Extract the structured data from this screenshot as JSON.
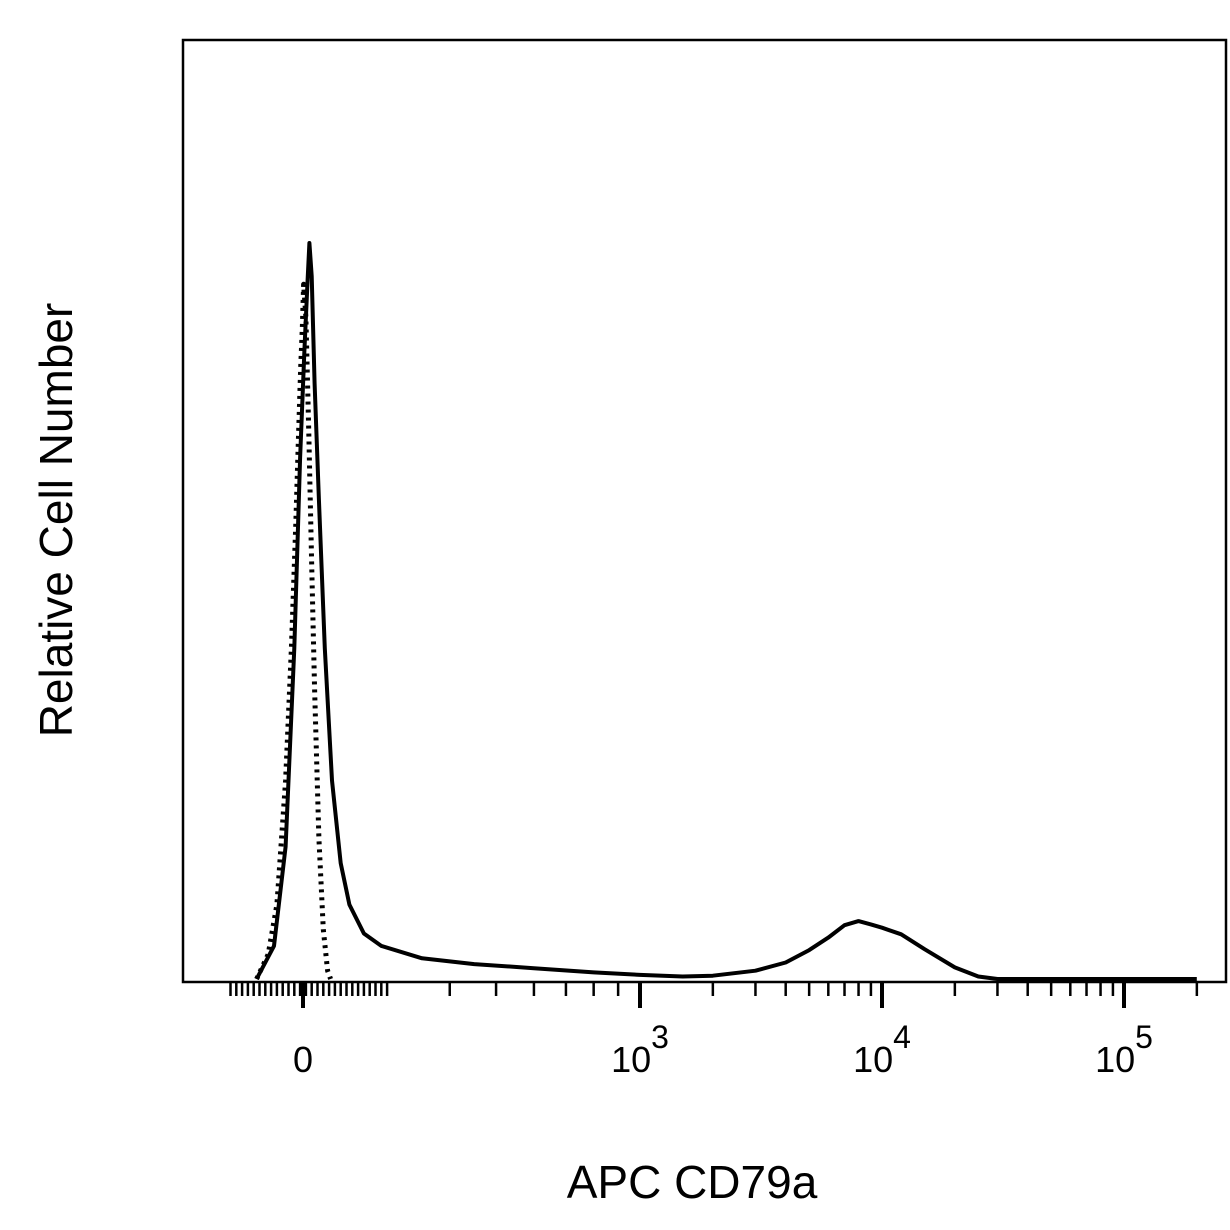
{
  "chart_data": {
    "type": "line",
    "title": "",
    "xlabel": "APC CD79a",
    "ylabel": "Relative Cell Number",
    "x_scale": "biexponential",
    "xlim": [
      -300,
      200000
    ],
    "ylim": [
      0,
      100
    ],
    "grid": false,
    "legend": "none",
    "x_ticks": [
      {
        "value": 0,
        "label": "0"
      },
      {
        "value": 1000,
        "base": "10",
        "exp": "3"
      },
      {
        "value": 10000,
        "base": "10",
        "exp": "4"
      },
      {
        "value": 100000,
        "base": "10",
        "exp": "5"
      }
    ],
    "series": [
      {
        "style": "solid",
        "color": "#000000",
        "points": [
          [
            -160,
            0
          ],
          [
            -100,
            4
          ],
          [
            -60,
            16
          ],
          [
            -30,
            40
          ],
          [
            -10,
            63
          ],
          [
            5,
            76
          ],
          [
            15,
            84
          ],
          [
            22,
            89
          ],
          [
            30,
            85
          ],
          [
            40,
            72
          ],
          [
            55,
            58
          ],
          [
            75,
            40
          ],
          [
            100,
            24
          ],
          [
            130,
            14
          ],
          [
            160,
            9
          ],
          [
            210,
            5.5
          ],
          [
            270,
            4
          ],
          [
            350,
            2.5
          ],
          [
            450,
            1.8
          ],
          [
            600,
            1.3
          ],
          [
            800,
            0.8
          ],
          [
            1000,
            0.5
          ],
          [
            1500,
            0.3
          ],
          [
            2000,
            0.4
          ],
          [
            3000,
            1
          ],
          [
            4000,
            2
          ],
          [
            5000,
            3.5
          ],
          [
            6000,
            5
          ],
          [
            7000,
            6.5
          ],
          [
            8000,
            7
          ],
          [
            9000,
            6.6
          ],
          [
            10000,
            6.2
          ],
          [
            12000,
            5.4
          ],
          [
            15000,
            3.6
          ],
          [
            20000,
            1.4
          ],
          [
            25000,
            0.3
          ],
          [
            30000,
            0
          ],
          [
            60000,
            0
          ],
          [
            200000,
            0
          ]
        ]
      },
      {
        "style": "dotted",
        "color": "#000000",
        "points": [
          [
            -160,
            0
          ],
          [
            -120,
            3
          ],
          [
            -90,
            9
          ],
          [
            -60,
            24
          ],
          [
            -40,
            40
          ],
          [
            -25,
            55
          ],
          [
            -15,
            66
          ],
          [
            -8,
            74
          ],
          [
            -2,
            79
          ],
          [
            2,
            84
          ],
          [
            10,
            80
          ],
          [
            20,
            66
          ],
          [
            30,
            50
          ],
          [
            40,
            35
          ],
          [
            55,
            17
          ],
          [
            70,
            6
          ],
          [
            85,
            1
          ],
          [
            95,
            0
          ]
        ]
      }
    ]
  }
}
